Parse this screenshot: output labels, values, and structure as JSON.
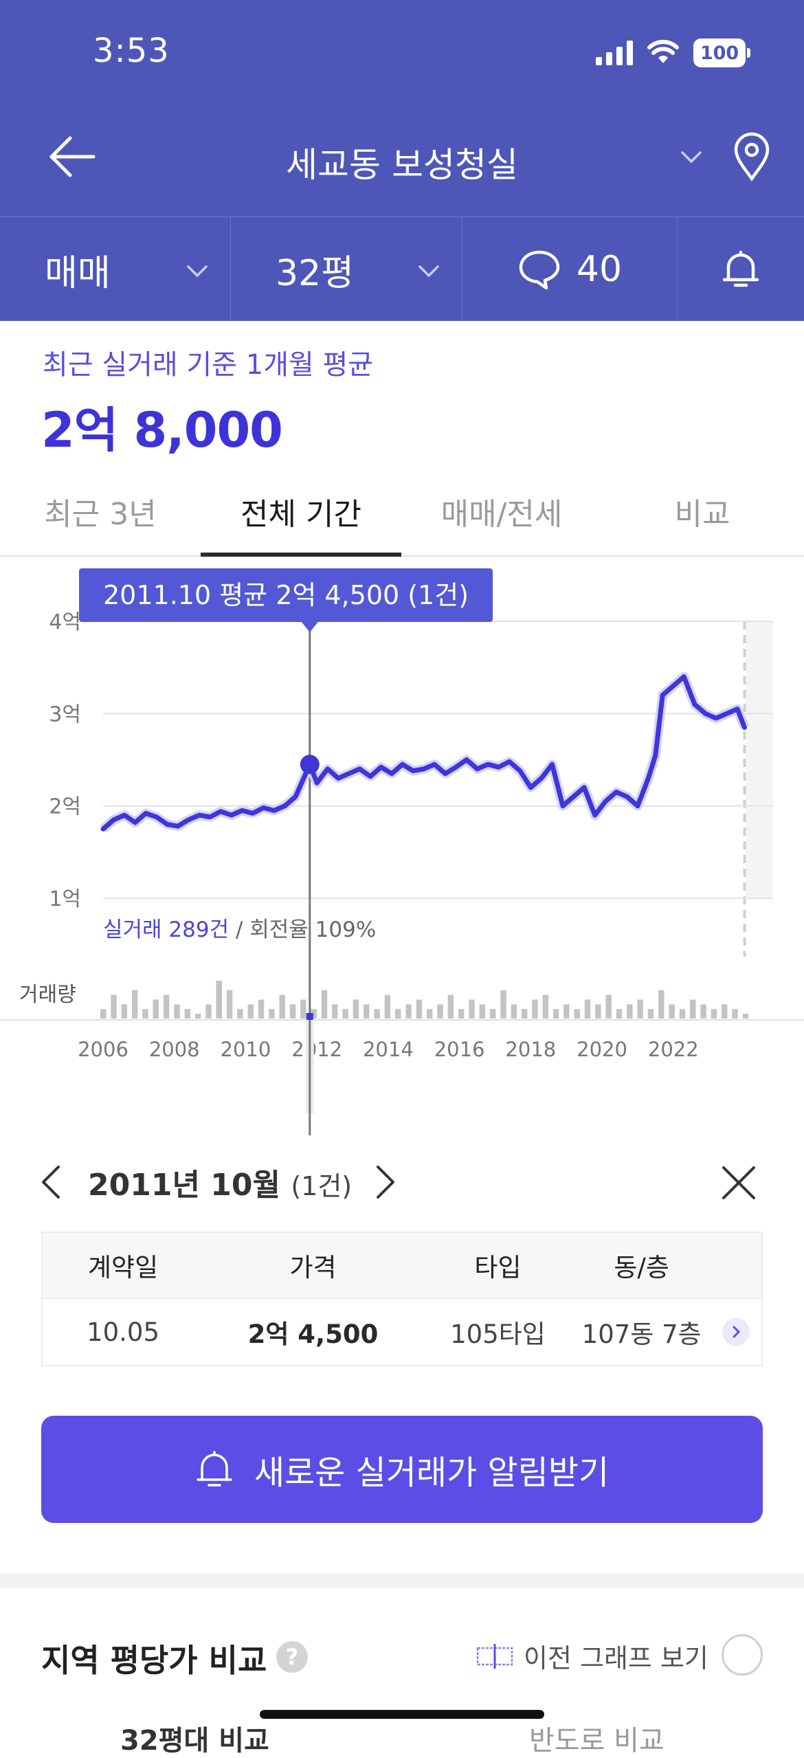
{
  "status": {
    "time": "3:53",
    "battery": "100"
  },
  "nav": {
    "title": "세교동 보성청실"
  },
  "subnav": {
    "trade_type": "매매",
    "size": "32평",
    "comment_count": "40"
  },
  "summary": {
    "label": "최근 실거래 기준 1개월 평균",
    "value": "2억 8,000"
  },
  "tabs": [
    {
      "label": "최근 3년"
    },
    {
      "label": "전체 기간"
    },
    {
      "label": "매매/전세"
    },
    {
      "label": "비교"
    }
  ],
  "chart": {
    "tooltip": "2011.10 평균 2억 4,500 (1건)",
    "stats_prefix": "실거래 289건",
    "stats_suffix": " / 회전율 109%",
    "volume_label": "거래량"
  },
  "chart_data": {
    "type": "line",
    "ylabel": "",
    "ytick_labels": [
      "4억",
      "3억",
      "2억",
      "1억"
    ],
    "yticks": [
      4,
      3,
      2,
      1
    ],
    "ylim": [
      1,
      4
    ],
    "xtick_labels": [
      "2006",
      "2008",
      "2010",
      "2012",
      "2014",
      "2016",
      "2018",
      "2020",
      "2022"
    ],
    "xlim": [
      2006,
      2024.8
    ],
    "selected": {
      "x": 2011.8,
      "y": 2.45
    },
    "series": [
      {
        "x": [
          2006.0,
          2006.3,
          2006.6,
          2006.9,
          2007.2,
          2007.5,
          2007.8,
          2008.1,
          2008.4,
          2008.7,
          2009.0,
          2009.3,
          2009.6,
          2009.9,
          2010.2,
          2010.5,
          2010.8,
          2011.1,
          2011.4,
          2011.8,
          2012.0,
          2012.3,
          2012.6,
          2012.9,
          2013.2,
          2013.5,
          2013.8,
          2014.1,
          2014.4,
          2014.7,
          2015.0,
          2015.3,
          2015.6,
          2015.9,
          2016.2,
          2016.5,
          2016.8,
          2017.1,
          2017.4,
          2017.7,
          2018.0,
          2018.3,
          2018.6,
          2018.9,
          2019.2,
          2019.5,
          2019.8,
          2020.1,
          2020.4,
          2020.7,
          2021.0,
          2021.3,
          2021.5,
          2021.7,
          2022.0,
          2022.3,
          2022.6,
          2022.9,
          2023.2,
          2023.5,
          2023.8,
          2024.0
        ],
        "y": [
          1.75,
          1.85,
          1.9,
          1.82,
          1.92,
          1.88,
          1.8,
          1.78,
          1.85,
          1.9,
          1.88,
          1.94,
          1.9,
          1.95,
          1.92,
          1.98,
          1.95,
          2.0,
          2.1,
          2.45,
          2.25,
          2.4,
          2.3,
          2.35,
          2.4,
          2.32,
          2.42,
          2.35,
          2.45,
          2.38,
          2.4,
          2.45,
          2.35,
          2.42,
          2.5,
          2.4,
          2.45,
          2.42,
          2.48,
          2.38,
          2.2,
          2.3,
          2.45,
          2.0,
          2.1,
          2.2,
          1.9,
          2.05,
          2.15,
          2.1,
          2.0,
          2.3,
          2.55,
          3.2,
          3.3,
          3.4,
          3.1,
          3.0,
          2.95,
          3.0,
          3.05,
          2.85
        ]
      }
    ],
    "volume": [
      2,
      5,
      3,
      6,
      2,
      4,
      5,
      3,
      2,
      1,
      3,
      8,
      6,
      2,
      3,
      4,
      2,
      5,
      3,
      4,
      2,
      6,
      3,
      2,
      4,
      3,
      2,
      5,
      2,
      3,
      4,
      2,
      3,
      5,
      2,
      4,
      3,
      2,
      6,
      3,
      2,
      4,
      5,
      2,
      3,
      2,
      4,
      3,
      5,
      2,
      3,
      4,
      2,
      6,
      3,
      2,
      4,
      3,
      2,
      3,
      2,
      1
    ]
  },
  "detail": {
    "month": "2011년 10월",
    "count": "(1건)",
    "headers": [
      "계약일",
      "가격",
      "타입",
      "동/층"
    ],
    "row": {
      "date": "10.05",
      "price": "2억 4,500",
      "type": "105타입",
      "unit": "107동 7층"
    }
  },
  "alert_button": "새로운 실거래가 알림받기",
  "region": {
    "title": "지역 평당가 비교",
    "help": "?",
    "prev_graph_label": "이전 그래프 보기"
  },
  "peek": {
    "left": "32평대 비교",
    "right": "반도로 비교"
  }
}
